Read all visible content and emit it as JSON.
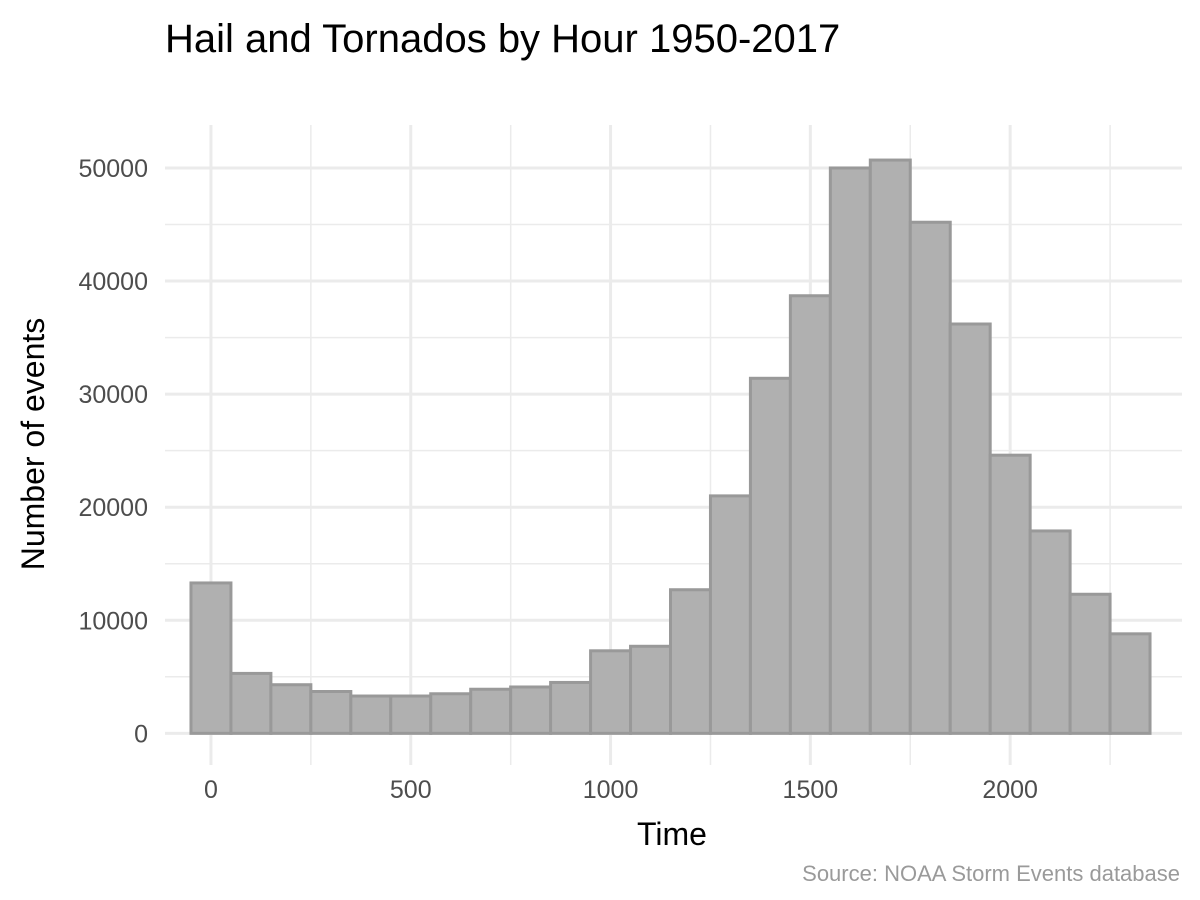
{
  "chart_data": {
    "type": "bar",
    "title": "Hail and Tornados by Hour 1950-2017",
    "xlabel": "Time",
    "ylabel": "Number of events",
    "caption": "Source: NOAA Storm Events database",
    "bin_width": 100,
    "x": [
      0,
      100,
      200,
      300,
      400,
      500,
      600,
      700,
      800,
      900,
      1000,
      1100,
      1200,
      1300,
      1400,
      1500,
      1600,
      1700,
      1800,
      1900,
      2000,
      2100,
      2200,
      2300
    ],
    "values": [
      13300,
      5300,
      4300,
      3700,
      3300,
      3300,
      3500,
      3900,
      4100,
      4500,
      7300,
      7700,
      12700,
      21000,
      31400,
      38700,
      50000,
      50700,
      45200,
      36200,
      24600,
      17900,
      12300,
      8800
    ],
    "xlim": [
      -115,
      2430
    ],
    "ylim": [
      -2800,
      53800
    ],
    "x_ticks": [
      0,
      500,
      1000,
      1500,
      2000
    ],
    "x_tick_labels": [
      "0",
      "500",
      "1000",
      "1500",
      "2000"
    ],
    "x_minor_ticks": [
      250,
      750,
      1250,
      1750,
      2250
    ],
    "y_ticks": [
      0,
      10000,
      20000,
      30000,
      40000,
      50000
    ],
    "y_tick_labels": [
      "0",
      "10000",
      "20000",
      "30000",
      "40000",
      "50000"
    ],
    "y_minor_ticks": [
      5000,
      15000,
      25000,
      35000,
      45000
    ],
    "grid": true,
    "legend": "none",
    "bar_fill": "#b0b0b0",
    "bar_stroke": "#999999"
  }
}
